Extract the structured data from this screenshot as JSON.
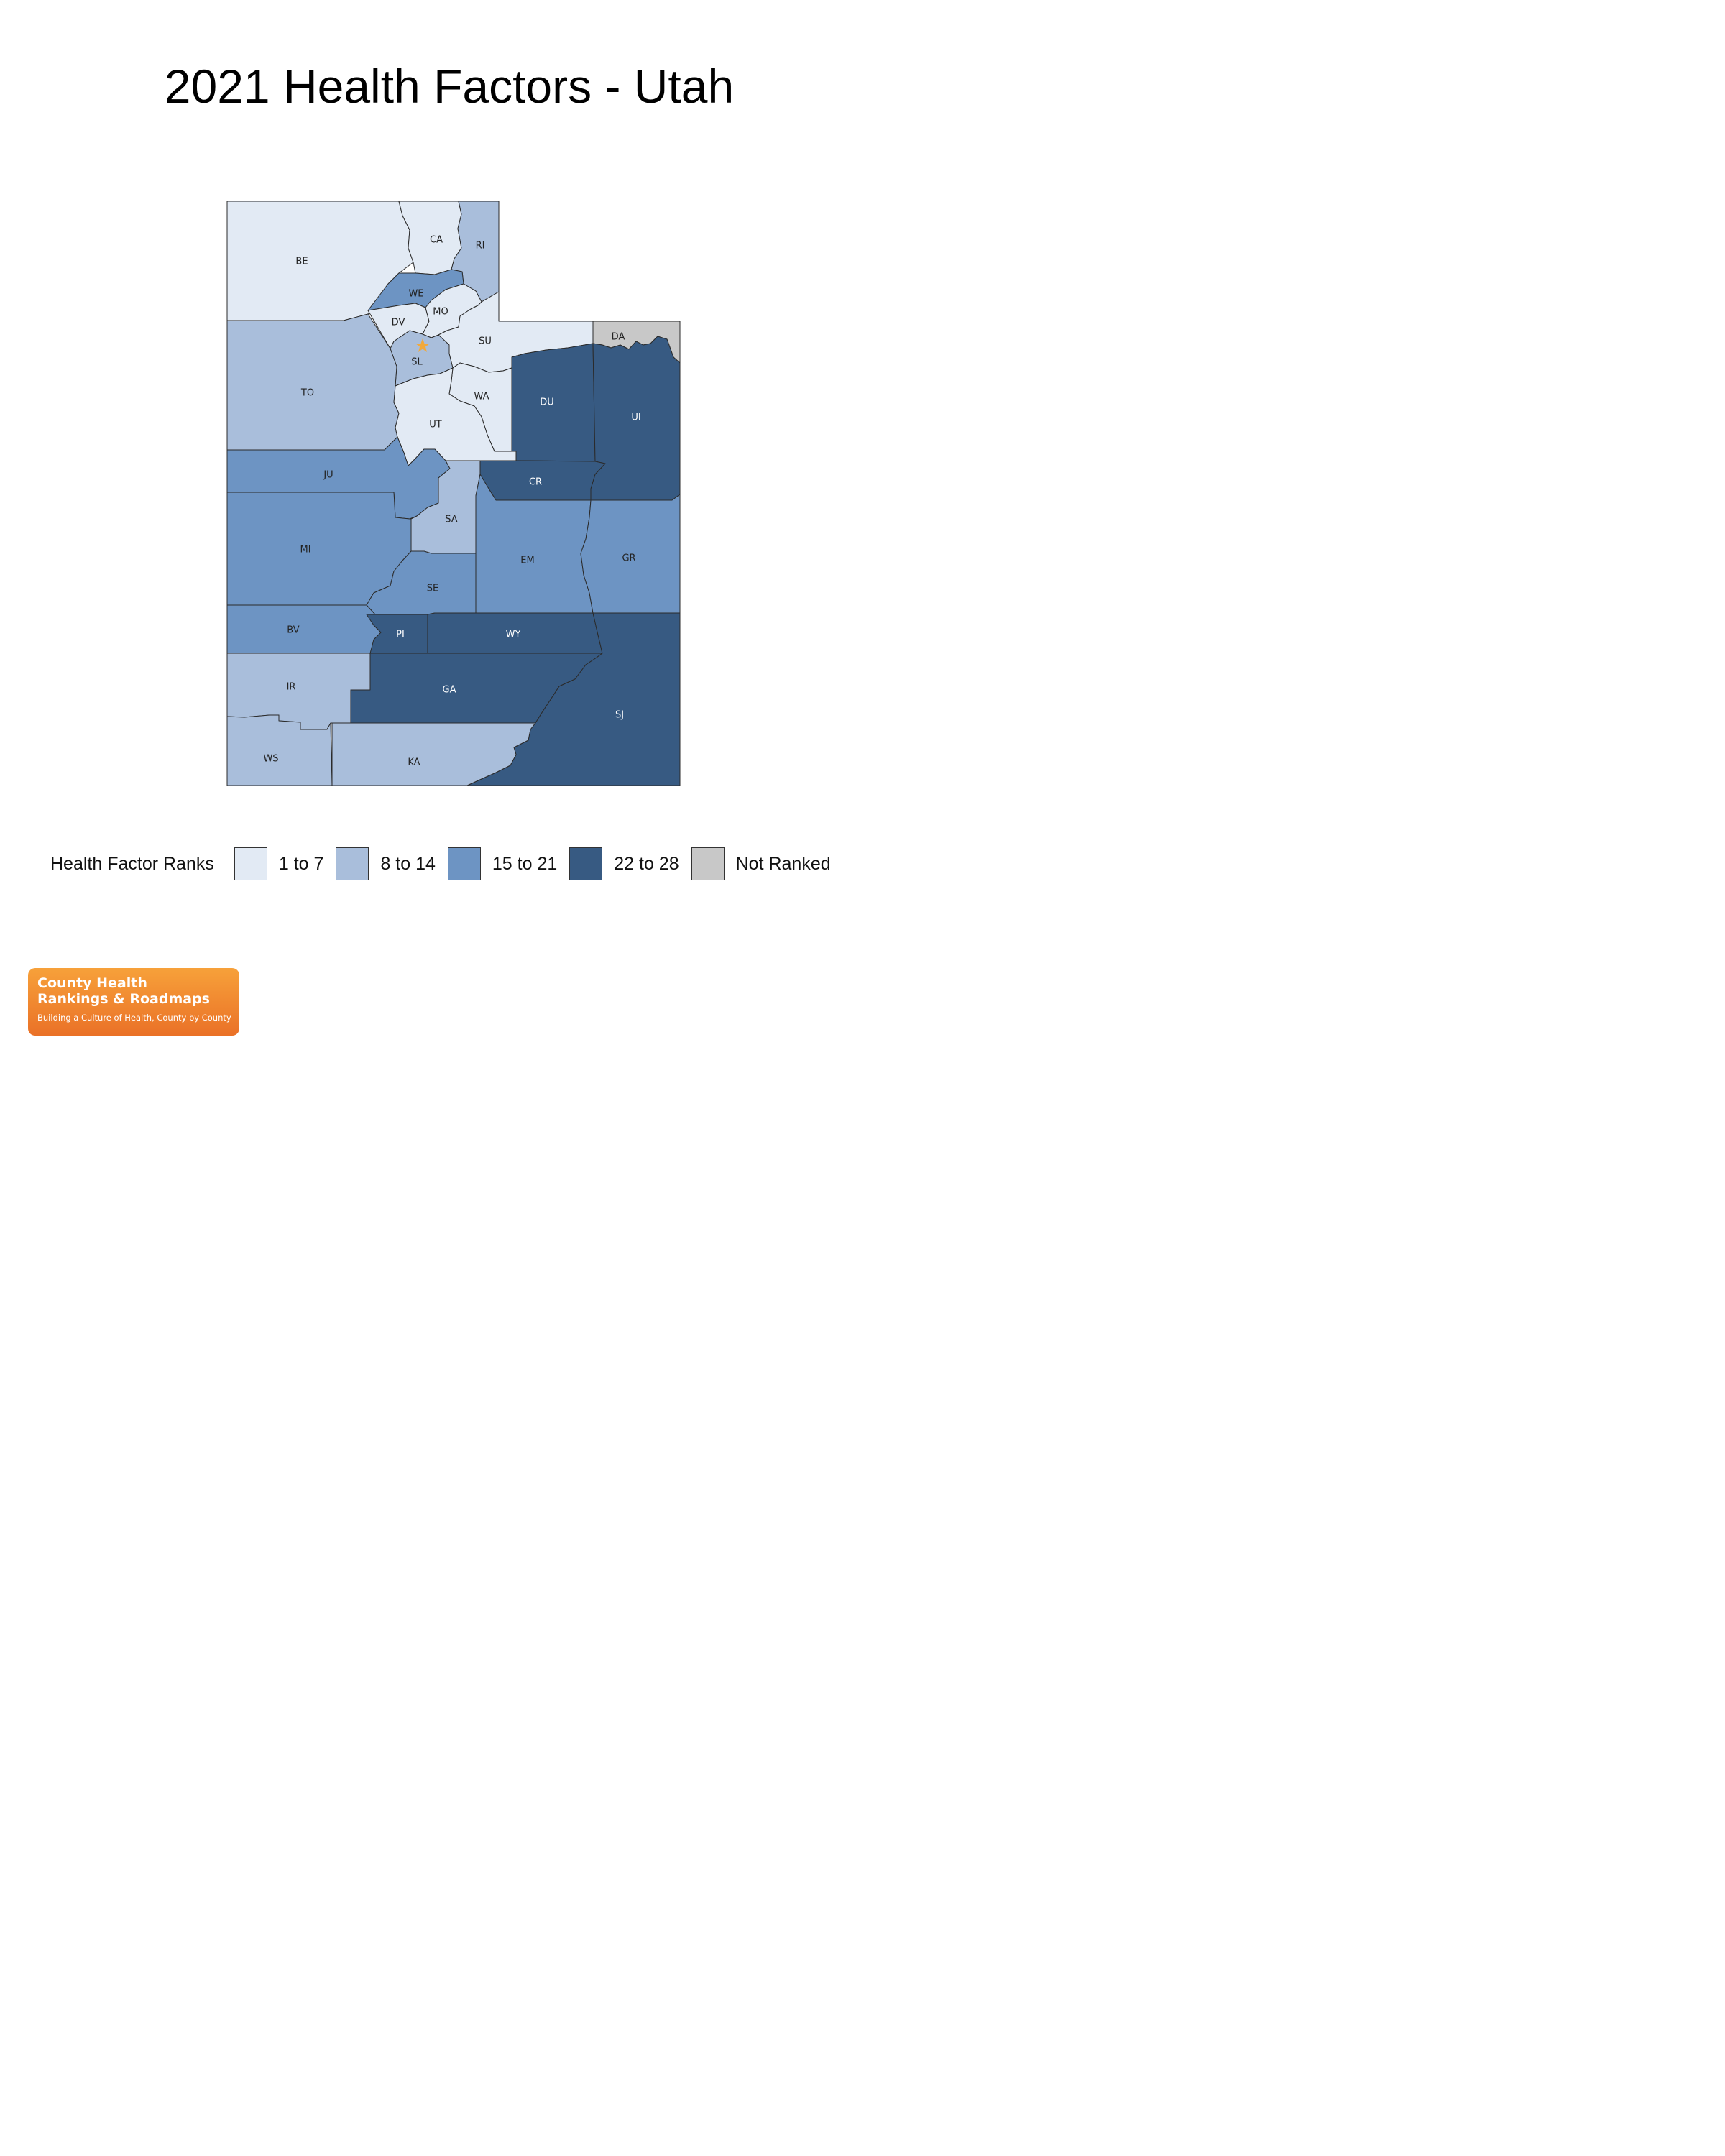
{
  "title": "2021 Health Factors - Utah",
  "legend": {
    "title": "Health Factor Ranks",
    "items": [
      {
        "label": "1 to 7",
        "color": "#e2eaf4"
      },
      {
        "label": "8 to 14",
        "color": "#a9bedb"
      },
      {
        "label": "15 to 21",
        "color": "#6d94c3"
      },
      {
        "label": "22 to 28",
        "color": "#375a82"
      },
      {
        "label": "Not Ranked",
        "color": "#c8c8c8"
      }
    ]
  },
  "counties": [
    {
      "abbr": "BE",
      "bin": 0
    },
    {
      "abbr": "CA",
      "bin": 0
    },
    {
      "abbr": "RI",
      "bin": 1
    },
    {
      "abbr": "WE",
      "bin": 2
    },
    {
      "abbr": "DV",
      "bin": 0
    },
    {
      "abbr": "MO",
      "bin": 0
    },
    {
      "abbr": "SU",
      "bin": 0
    },
    {
      "abbr": "DA",
      "bin": 4
    },
    {
      "abbr": "SL",
      "bin": 1
    },
    {
      "abbr": "TO",
      "bin": 1
    },
    {
      "abbr": "WA",
      "bin": 0
    },
    {
      "abbr": "UT",
      "bin": 0
    },
    {
      "abbr": "DU",
      "bin": 3
    },
    {
      "abbr": "UI",
      "bin": 3
    },
    {
      "abbr": "CR",
      "bin": 3
    },
    {
      "abbr": "JU",
      "bin": 2
    },
    {
      "abbr": "SA",
      "bin": 1
    },
    {
      "abbr": "MI",
      "bin": 2
    },
    {
      "abbr": "EM",
      "bin": 2
    },
    {
      "abbr": "GR",
      "bin": 2
    },
    {
      "abbr": "SE",
      "bin": 2
    },
    {
      "abbr": "BV",
      "bin": 2
    },
    {
      "abbr": "PI",
      "bin": 3
    },
    {
      "abbr": "WY",
      "bin": 3
    },
    {
      "abbr": "IR",
      "bin": 1
    },
    {
      "abbr": "GA",
      "bin": 3
    },
    {
      "abbr": "SJ",
      "bin": 3
    },
    {
      "abbr": "WS",
      "bin": 1
    },
    {
      "abbr": "KA",
      "bin": 1
    }
  ],
  "capital_marker_color": "#f2a93b",
  "logo": {
    "line1": "County Health",
    "line2": "Rankings & Roadmaps",
    "tagline": "Building a Culture of Health, County by County"
  }
}
